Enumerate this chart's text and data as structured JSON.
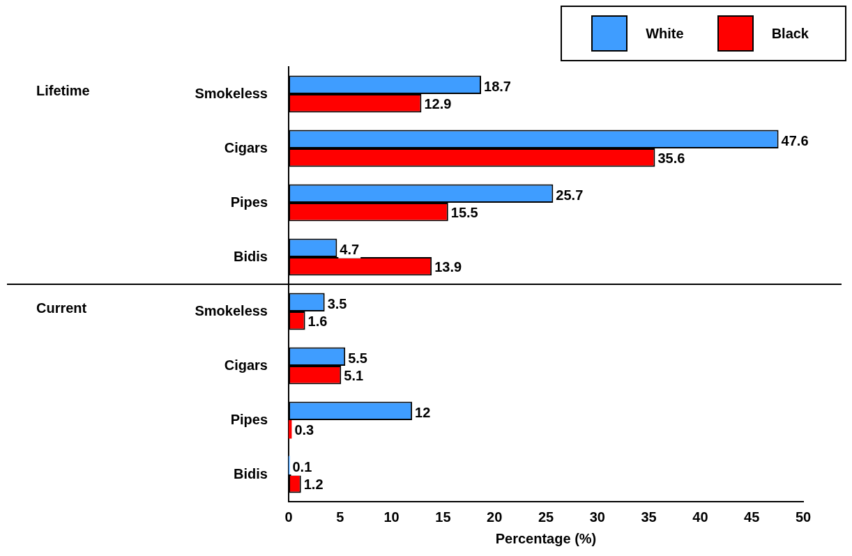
{
  "chart_data": {
    "type": "bar",
    "orientation": "horizontal",
    "categories": [
      "Smokeless",
      "Cigars",
      "Pipes",
      "Bidis",
      "Smokeless",
      "Cigars",
      "Pipes",
      "Bidis"
    ],
    "series": [
      {
        "name": "White",
        "color": "#3f9dff",
        "values": [
          18.7,
          47.6,
          25.7,
          4.7,
          3.5,
          5.5,
          12,
          0.1
        ]
      },
      {
        "name": "Black",
        "color": "#ff0000",
        "values": [
          12.9,
          35.6,
          15.5,
          13.9,
          1.6,
          5.1,
          0.3,
          1.2
        ]
      }
    ],
    "xlim": [
      0,
      50
    ],
    "xticks": [
      0,
      5,
      10,
      15,
      20,
      25,
      30,
      35,
      40,
      45,
      50
    ],
    "xlabel": "Percentage (%)",
    "annotations": [
      "Lifetime",
      "Current"
    ],
    "data_labels": true,
    "legend": "top right",
    "grid": false
  }
}
